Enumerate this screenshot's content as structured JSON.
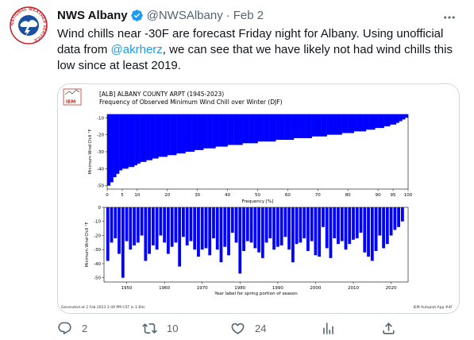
{
  "tweet": {
    "author_name": "NWS Albany",
    "handle": "@NWSAlbany",
    "date": "Feb 2",
    "text_pre": "Wind chills near -30F are forecast Friday night for Albany. Using unofficial data from ",
    "mention": "@akrherz",
    "text_post": ", we can see that we have likely not had wind chills this low since at least 2019."
  },
  "avatar": {
    "ring_text": "NATIONAL WEATHER SERVICE"
  },
  "actions": {
    "replies": "2",
    "retweets": "10",
    "likes": "24"
  },
  "chart_image": {
    "logo_text": "IEM",
    "title_line1": "[ALB] ALBANY COUNTY ARPT (1945-2023)",
    "title_line2": "Frequency of Observed Minimum Wind Chill over Winter (DJF)",
    "footer_left": "Generated at 2 Feb 2023 2:49 PM CST in 1.84s",
    "footer_right": "IEM Autoplot App #4F"
  },
  "chart_data": [
    {
      "type": "bar",
      "orientation": "horizontal",
      "xlabel": "Frequency [%]",
      "ylabel": "Minimum Wind Chill °F",
      "xlim": [
        0,
        100
      ],
      "ylim": [
        -52,
        -8
      ],
      "xticks": [
        0,
        5,
        10,
        20,
        30,
        40,
        50,
        60,
        70,
        80,
        90,
        95,
        100
      ],
      "yticks": [
        -10,
        -20,
        -30,
        -40,
        -50
      ],
      "x": [
        1,
        2,
        3,
        4,
        5,
        6,
        7,
        8,
        9,
        10,
        11,
        12,
        13,
        14,
        15,
        16,
        17,
        18,
        19,
        20,
        21,
        22,
        23,
        24,
        25,
        26,
        27,
        28,
        29,
        30,
        31,
        32,
        33,
        34,
        35,
        36,
        37,
        38,
        39,
        40,
        41,
        42,
        43,
        44,
        45,
        46,
        47,
        48,
        49,
        50,
        51,
        52,
        53,
        54,
        55,
        56,
        57,
        58,
        59,
        60,
        61,
        62,
        63,
        64,
        65,
        66,
        67,
        68,
        69,
        70,
        71,
        72,
        73,
        74,
        75,
        76,
        77,
        78,
        79,
        80,
        81,
        82,
        83,
        84,
        85,
        86,
        87,
        88,
        89,
        90,
        91,
        92,
        93,
        94,
        95,
        96,
        97,
        98,
        99,
        100
      ],
      "values": [
        -50,
        -48,
        -45,
        -43,
        -41,
        -40,
        -40,
        -39,
        -39,
        -38,
        -37,
        -36,
        -36,
        -35,
        -35,
        -34,
        -34,
        -33,
        -33,
        -33,
        -32,
        -32,
        -32,
        -31,
        -31,
        -31,
        -30,
        -30,
        -30,
        -29,
        -29,
        -29,
        -28,
        -28,
        -28,
        -28,
        -27,
        -27,
        -27,
        -27,
        -26,
        -26,
        -26,
        -26,
        -26,
        -25,
        -25,
        -25,
        -25,
        -25,
        -24,
        -24,
        -24,
        -24,
        -24,
        -24,
        -23,
        -23,
        -23,
        -23,
        -23,
        -23,
        -22,
        -22,
        -22,
        -22,
        -22,
        -22,
        -21,
        -21,
        -21,
        -21,
        -21,
        -20,
        -20,
        -20,
        -20,
        -20,
        -19,
        -19,
        -19,
        -19,
        -18,
        -18,
        -18,
        -18,
        -17,
        -17,
        -17,
        -16,
        -16,
        -16,
        -15,
        -15,
        -14,
        -14,
        -13,
        -12,
        -11,
        -10
      ]
    },
    {
      "type": "bar",
      "xlabel": "Year label for spring portion of season",
      "ylabel": "Minimum Wind Chill °F",
      "xlim": [
        1944,
        2024.5
      ],
      "ylim": [
        -53,
        0
      ],
      "xticks": [
        1950,
        1960,
        1970,
        1980,
        1990,
        2000,
        2010,
        2020
      ],
      "yticks": [
        0,
        -10,
        -20,
        -30,
        -40,
        -50
      ],
      "x": [
        1945,
        1946,
        1947,
        1948,
        1949,
        1950,
        1951,
        1952,
        1953,
        1954,
        1955,
        1956,
        1957,
        1958,
        1959,
        1960,
        1961,
        1962,
        1963,
        1964,
        1965,
        1966,
        1967,
        1968,
        1969,
        1970,
        1971,
        1972,
        1973,
        1974,
        1975,
        1976,
        1977,
        1978,
        1979,
        1980,
        1981,
        1982,
        1983,
        1984,
        1985,
        1986,
        1987,
        1988,
        1989,
        1990,
        1991,
        1992,
        1993,
        1994,
        1995,
        1996,
        1997,
        1998,
        1999,
        2000,
        2001,
        2002,
        2003,
        2004,
        2005,
        2006,
        2007,
        2008,
        2009,
        2010,
        2011,
        2012,
        2013,
        2014,
        2015,
        2016,
        2017,
        2018,
        2019,
        2020,
        2021,
        2022,
        2023
      ],
      "values": [
        -38,
        -25,
        -22,
        -33,
        -50,
        -24,
        -30,
        -27,
        -25,
        -20,
        -38,
        -33,
        -27,
        -30,
        -20,
        -25,
        -33,
        -28,
        -25,
        -42,
        -21,
        -27,
        -24,
        -30,
        -35,
        -30,
        -29,
        -34,
        -22,
        -30,
        -39,
        -28,
        -34,
        -18,
        -25,
        -47,
        -31,
        -24,
        -25,
        -29,
        -32,
        -36,
        -25,
        -22,
        -30,
        -28,
        -27,
        -21,
        -30,
        -39,
        -26,
        -25,
        -22,
        -31,
        -24,
        -34,
        -35,
        -14,
        -29,
        -36,
        -22,
        -26,
        -24,
        -30,
        -26,
        -23,
        -22,
        -18,
        -32,
        -35,
        -38,
        -31,
        -20,
        -29,
        -26,
        -20,
        -16,
        -14,
        -10
      ]
    }
  ],
  "colors": {
    "bar": "#0000ff",
    "link": "#1d9bf0",
    "verified": "#1d9bf0",
    "muted": "#536471",
    "border": "#cfd9de"
  },
  "icons": [
    "verified-icon",
    "more-icon",
    "reply-icon",
    "retweet-icon",
    "like-icon",
    "analytics-icon",
    "share-icon"
  ]
}
